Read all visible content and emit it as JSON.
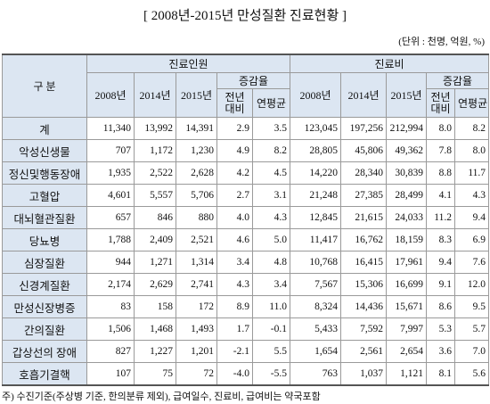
{
  "header": {
    "title": "[ 2008년-2015년 만성질환 진료현황 ]",
    "unit": "(단위 : 천명, 억원, %)"
  },
  "table": {
    "corner": "구 분",
    "groups": [
      {
        "label": "진료인원",
        "years": [
          "2008년",
          "2014년",
          "2015년"
        ],
        "rate": {
          "label": "증감율",
          "sub": [
            "전년 대비",
            "연평균"
          ]
        }
      },
      {
        "label": "진료비",
        "years": [
          "2008년",
          "2014년",
          "2015년"
        ],
        "rate": {
          "label": "증감율",
          "sub": [
            "전년 대비",
            "연평균"
          ]
        }
      }
    ],
    "rows": [
      [
        "계",
        "11,340",
        "13,992",
        "14,391",
        "2.9",
        "3.5",
        "123,045",
        "197,256",
        "212,994",
        "8.0",
        "8.2"
      ],
      [
        "악성신생물",
        "707",
        "1,172",
        "1,230",
        "4.9",
        "8.2",
        "28,805",
        "45,806",
        "49,362",
        "7.8",
        "8.0"
      ],
      [
        "정신및행동장애",
        "1,935",
        "2,522",
        "2,628",
        "4.2",
        "4.5",
        "14,220",
        "28,340",
        "30,839",
        "8.8",
        "11.7"
      ],
      [
        "고혈압",
        "4,601",
        "5,557",
        "5,706",
        "2.7",
        "3.1",
        "21,248",
        "27,385",
        "28,499",
        "4.1",
        "4.3"
      ],
      [
        "대뇌혈관질환",
        "657",
        "846",
        "880",
        "4.0",
        "4.3",
        "12,845",
        "21,615",
        "24,033",
        "11.2",
        "9.4"
      ],
      [
        "당뇨병",
        "1,788",
        "2,409",
        "2,521",
        "4.6",
        "5.0",
        "11,417",
        "16,762",
        "18,159",
        "8.3",
        "6.9"
      ],
      [
        "심장질환",
        "944",
        "1,271",
        "1,314",
        "3.4",
        "4.8",
        "10,768",
        "16,415",
        "17,961",
        "9.4",
        "7.6"
      ],
      [
        "신경계질환",
        "2,174",
        "2,629",
        "2,741",
        "4.3",
        "3.4",
        "7,567",
        "15,306",
        "16,699",
        "9.1",
        "12.0"
      ],
      [
        "만성신장병증",
        "83",
        "158",
        "172",
        "8.9",
        "11.0",
        "8,324",
        "14,436",
        "15,671",
        "8.6",
        "9.5"
      ],
      [
        "간의질환",
        "1,506",
        "1,468",
        "1,493",
        "1.7",
        "-0.1",
        "5,433",
        "7,592",
        "7,997",
        "5.3",
        "5.7"
      ],
      [
        "갑상선의 장애",
        "827",
        "1,227",
        "1,201",
        "-2.1",
        "5.5",
        "1,654",
        "2,561",
        "2,654",
        "3.6",
        "7.0"
      ],
      [
        "호흡기결핵",
        "107",
        "75",
        "72",
        "-4.0",
        "-5.5",
        "763",
        "1,037",
        "1,121",
        "8.1",
        "5.6"
      ]
    ]
  },
  "footnote": "주) 수진기준(주상병 기준, 한의분류 제외), 급여일수, 진료비, 급여비는 약국포함"
}
